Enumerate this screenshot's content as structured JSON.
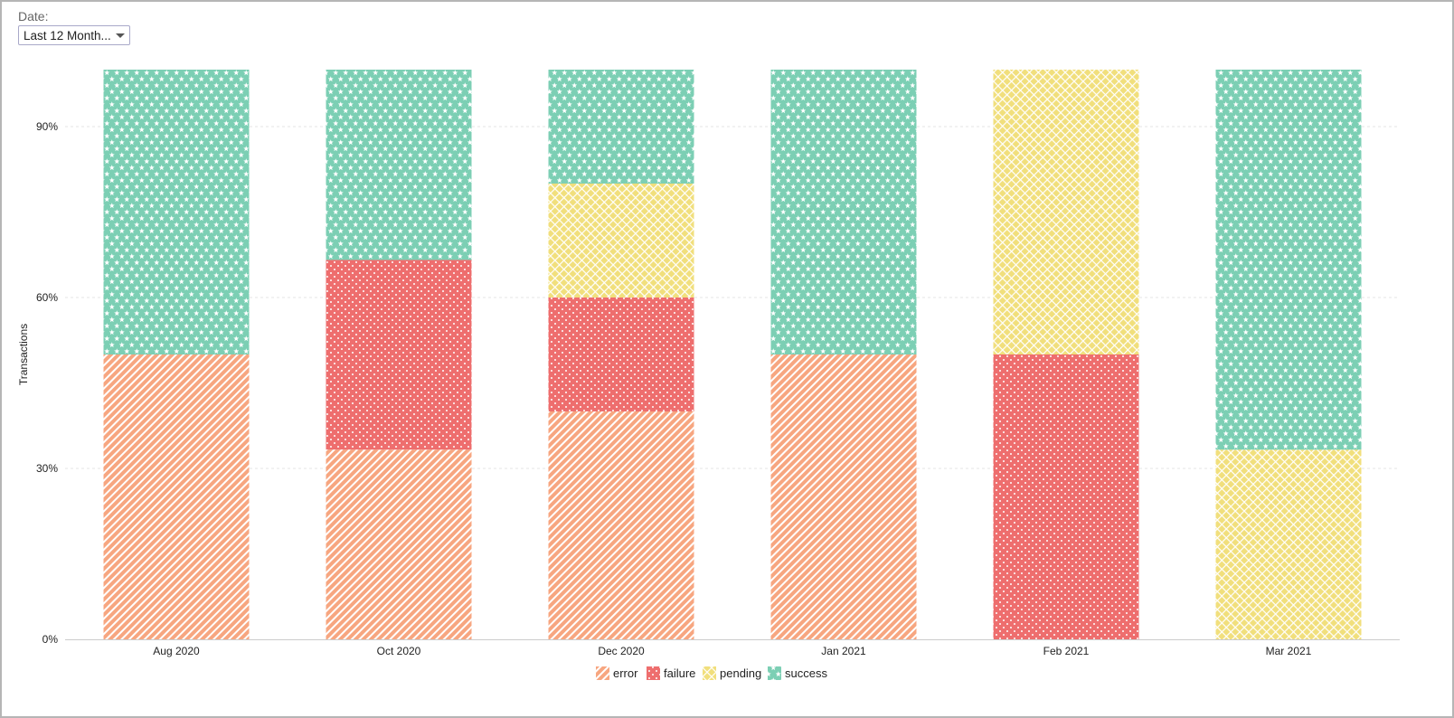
{
  "filter": {
    "label": "Date:",
    "selected": "Last 12 Month..."
  },
  "colors": {
    "error": "#f7a680",
    "failure": "#ee6e6e",
    "pending": "#f1df7c",
    "success": "#7ccfb4"
  },
  "chart_data": {
    "type": "bar",
    "stacked": true,
    "normalized": true,
    "ylabel": "Transactions",
    "xlabel": "",
    "ylim": [
      0,
      100
    ],
    "yticks": [
      "0%",
      "30%",
      "60%",
      "90%"
    ],
    "ytick_values": [
      0,
      30,
      60,
      90
    ],
    "grid": true,
    "legend_position": "bottom",
    "categories": [
      "Aug 2020",
      "Oct 2020",
      "Dec 2020",
      "Jan 2021",
      "Feb 2021",
      "Mar 2021"
    ],
    "series": [
      {
        "name": "error",
        "values": [
          50,
          33.3,
          40,
          50,
          0,
          0
        ]
      },
      {
        "name": "failure",
        "values": [
          0,
          33.3,
          20,
          0,
          50,
          0
        ]
      },
      {
        "name": "pending",
        "values": [
          0,
          0,
          20,
          0,
          50,
          33.3
        ]
      },
      {
        "name": "success",
        "values": [
          50,
          33.4,
          20,
          50,
          0,
          66.7
        ]
      }
    ]
  }
}
